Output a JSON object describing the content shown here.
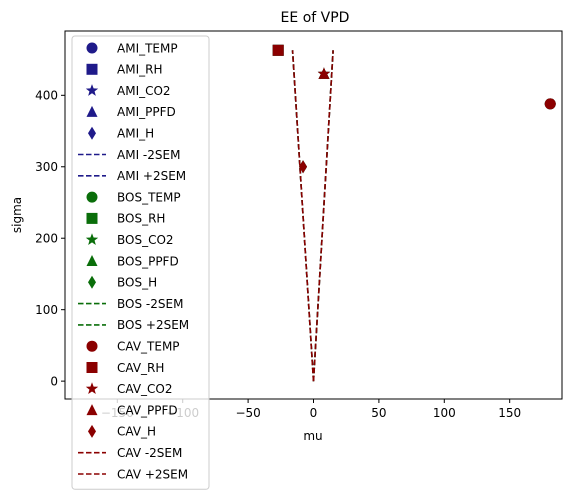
{
  "chart_data": {
    "type": "scatter",
    "title": "EE of VPD",
    "xlabel": "mu",
    "ylabel": "sigma",
    "xlim": [
      -190,
      190
    ],
    "ylim": [
      -25,
      490
    ],
    "xticks": [
      -150,
      -100,
      -50,
      0,
      50,
      100,
      150
    ],
    "yticks": [
      0,
      100,
      200,
      300,
      400
    ],
    "xtick_labels": [
      "−150",
      "−100",
      "−50",
      "0",
      "50",
      "100",
      "150"
    ],
    "ytick_labels": [
      "0",
      "100",
      "200",
      "300",
      "400"
    ],
    "grid": false,
    "legend_position": "upper-left",
    "colors": {
      "AMI": "#1f1a8a",
      "BOS": "#0a6e0a",
      "CAV": "#8b0000"
    },
    "series": [
      {
        "name": "AMI_TEMP",
        "group": "AMI",
        "marker": "circle",
        "points": [
          [
            181,
            388
          ]
        ]
      },
      {
        "name": "AMI_RH",
        "group": "AMI",
        "marker": "square",
        "points": [
          [
            -27,
            463
          ]
        ]
      },
      {
        "name": "AMI_CO2",
        "group": "AMI",
        "marker": "star",
        "points": [
          [
            8,
            430
          ]
        ]
      },
      {
        "name": "AMI_PPFD",
        "group": "AMI",
        "marker": "triangle",
        "points": [
          [
            8,
            430
          ]
        ]
      },
      {
        "name": "AMI_H",
        "group": "AMI",
        "marker": "diamond",
        "points": [
          [
            -8,
            300
          ]
        ]
      },
      {
        "name": "AMI -2SEM",
        "group": "AMI",
        "marker": "dashed-line",
        "points": [
          [
            0,
            0
          ],
          [
            -16,
            463
          ]
        ]
      },
      {
        "name": "AMI +2SEM",
        "group": "AMI",
        "marker": "dashed-line",
        "points": [
          [
            0,
            0
          ],
          [
            15,
            463
          ]
        ]
      },
      {
        "name": "BOS_TEMP",
        "group": "BOS",
        "marker": "circle",
        "points": [
          [
            181,
            388
          ]
        ]
      },
      {
        "name": "BOS_RH",
        "group": "BOS",
        "marker": "square",
        "points": [
          [
            -27,
            463
          ]
        ]
      },
      {
        "name": "BOS_CO2",
        "group": "BOS",
        "marker": "star",
        "points": [
          [
            8,
            430
          ]
        ]
      },
      {
        "name": "BOS_PPFD",
        "group": "BOS",
        "marker": "triangle",
        "points": [
          [
            8,
            430
          ]
        ]
      },
      {
        "name": "BOS_H",
        "group": "BOS",
        "marker": "diamond",
        "points": [
          [
            -8,
            300
          ]
        ]
      },
      {
        "name": "BOS -2SEM",
        "group": "BOS",
        "marker": "dashed-line",
        "points": [
          [
            0,
            0
          ],
          [
            -16,
            463
          ]
        ]
      },
      {
        "name": "BOS +2SEM",
        "group": "BOS",
        "marker": "dashed-line",
        "points": [
          [
            0,
            0
          ],
          [
            15,
            463
          ]
        ]
      },
      {
        "name": "CAV_TEMP",
        "group": "CAV",
        "marker": "circle",
        "points": [
          [
            181,
            388
          ]
        ]
      },
      {
        "name": "CAV_RH",
        "group": "CAV",
        "marker": "square",
        "points": [
          [
            -27,
            463
          ]
        ]
      },
      {
        "name": "CAV_CO2",
        "group": "CAV",
        "marker": "star",
        "points": [
          [
            8,
            430
          ]
        ]
      },
      {
        "name": "CAV_PPFD",
        "group": "CAV",
        "marker": "triangle",
        "points": [
          [
            8,
            430
          ]
        ]
      },
      {
        "name": "CAV_H",
        "group": "CAV",
        "marker": "diamond",
        "points": [
          [
            -8,
            300
          ]
        ]
      },
      {
        "name": "CAV -2SEM",
        "group": "CAV",
        "marker": "dashed-line",
        "points": [
          [
            0,
            0
          ],
          [
            -16,
            463
          ]
        ]
      },
      {
        "name": "CAV +2SEM",
        "group": "CAV",
        "marker": "dashed-line",
        "points": [
          [
            0,
            0
          ],
          [
            15,
            463
          ]
        ]
      }
    ]
  }
}
